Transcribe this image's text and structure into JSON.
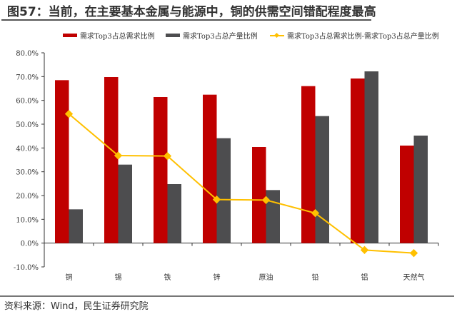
{
  "title": "图57：当前，在主要基本金属与能源中，铜的供需空间错配程度最高",
  "source": "资料来源：Wind，民生证券研究院",
  "chart_data": {
    "type": "bar",
    "title": "图57：当前，在主要基本金属与能源中，铜的供需空间错配程度最高",
    "categories": [
      "铜",
      "锡",
      "铁",
      "锌",
      "原油",
      "铅",
      "铝",
      "天然气"
    ],
    "series": [
      {
        "name": "需求Top3占总需求比例",
        "kind": "bar",
        "color": "#C00000",
        "values": [
          68.5,
          69.8,
          61.4,
          62.4,
          40.4,
          66.0,
          69.2,
          41.0
        ]
      },
      {
        "name": "需求Top3占总产量比例",
        "kind": "bar",
        "color": "#4D4D4F",
        "values": [
          14.2,
          33.0,
          24.8,
          44.1,
          22.3,
          53.4,
          72.2,
          45.2
        ]
      },
      {
        "name": "需求Top3占总需求比例-需求Top3占总产量比例",
        "kind": "line",
        "color": "#FFC000",
        "values": [
          54.3,
          36.8,
          36.6,
          18.3,
          18.1,
          12.6,
          -2.9,
          -4.2
        ]
      }
    ],
    "ylim": [
      -10,
      80
    ],
    "yticks": [
      -10,
      0,
      10,
      20,
      30,
      40,
      50,
      60,
      70,
      80
    ],
    "ytick_labels": [
      "-10.0%",
      "0.0%",
      "10.0%",
      "20.0%",
      "30.0%",
      "40.0%",
      "50.0%",
      "60.0%",
      "70.0%",
      "80.0%"
    ],
    "xlabel": "",
    "ylabel": "",
    "legend": "top",
    "grid": false
  }
}
